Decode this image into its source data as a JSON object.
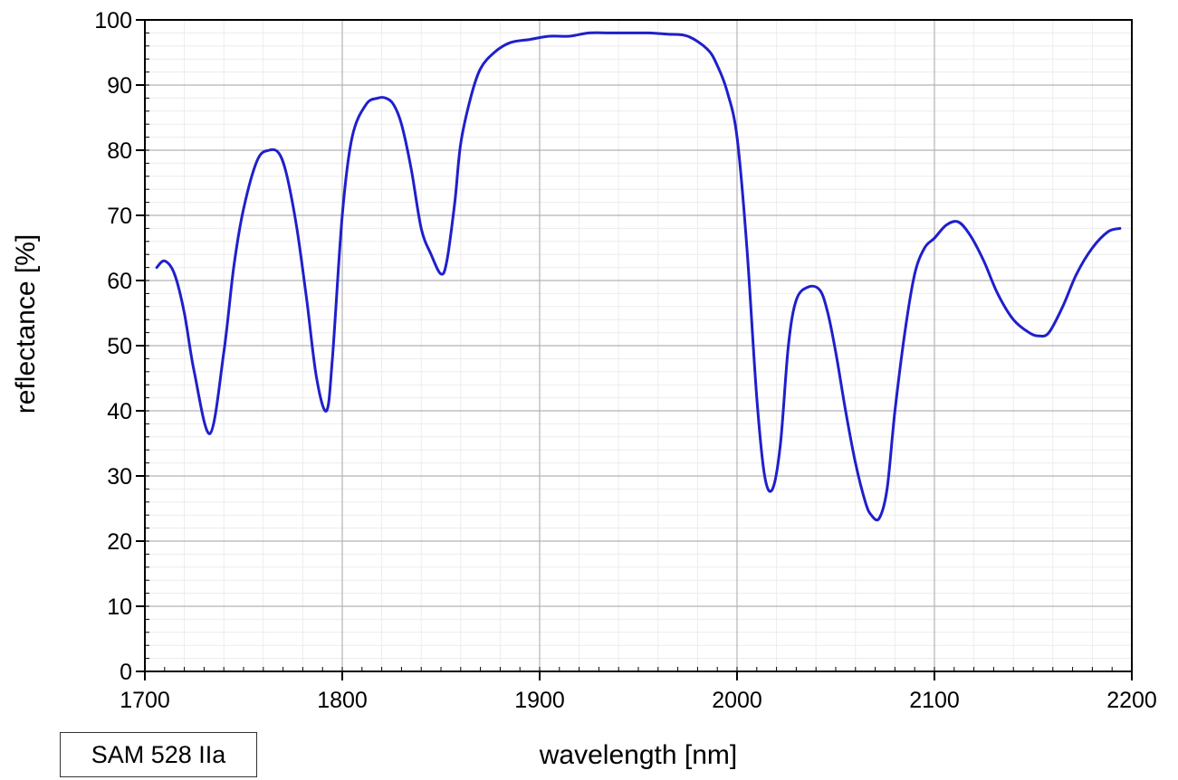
{
  "chart_data": {
    "type": "line",
    "xlabel": "wavelength [nm]",
    "ylabel": "reflectance [%]",
    "xlim": [
      1700,
      2200
    ],
    "ylim": [
      0,
      100
    ],
    "xticks": [
      1700,
      1800,
      1900,
      2000,
      2100,
      2200
    ],
    "yticks": [
      0,
      10,
      20,
      30,
      40,
      50,
      60,
      70,
      80,
      90,
      100
    ],
    "grid": true,
    "line_color": "#1f1fcc",
    "series": [
      {
        "x": [
          1706,
          1710,
          1715,
          1720,
          1725,
          1733,
          1740,
          1745,
          1750,
          1757,
          1763,
          1768,
          1772,
          1777,
          1782,
          1787,
          1792,
          1795,
          1800,
          1805,
          1812,
          1818,
          1822,
          1826,
          1830,
          1835,
          1840,
          1845,
          1850,
          1853,
          1857,
          1860,
          1865,
          1870,
          1877,
          1885,
          1895,
          1905,
          1915,
          1925,
          1935,
          1945,
          1955,
          1965,
          1975,
          1985,
          1990,
          1995,
          2000,
          2005,
          2010,
          2014,
          2018,
          2022,
          2026,
          2030,
          2036,
          2042,
          2046,
          2050,
          2055,
          2060,
          2065,
          2068,
          2072,
          2076,
          2080,
          2085,
          2090,
          2095,
          2100,
          2106,
          2112,
          2118,
          2125,
          2132,
          2140,
          2148,
          2153,
          2158,
          2165,
          2172,
          2180,
          2188,
          2194
        ],
        "y": [
          62,
          63,
          61,
          55,
          46,
          36.5,
          49,
          62,
          71,
          78.5,
          80,
          79.5,
          76,
          68,
          57,
          45,
          40,
          48,
          70,
          82,
          87,
          88,
          88,
          87,
          84,
          77,
          68,
          64,
          61,
          63,
          72,
          81,
          88,
          92.5,
          95,
          96.5,
          97,
          97.5,
          97.5,
          98,
          98,
          98,
          98,
          97.8,
          97.5,
          95.5,
          93,
          89,
          82,
          65,
          42,
          30,
          28,
          35,
          50,
          57,
          59,
          58.5,
          55,
          49,
          40,
          32,
          26,
          24,
          23.5,
          28,
          40,
          52,
          61,
          65,
          66.5,
          68.5,
          69,
          67,
          63,
          58,
          54,
          52,
          51.5,
          52,
          56,
          61,
          65,
          67.5,
          68
        ]
      }
    ],
    "annotation": "SAM 528 IIa"
  }
}
